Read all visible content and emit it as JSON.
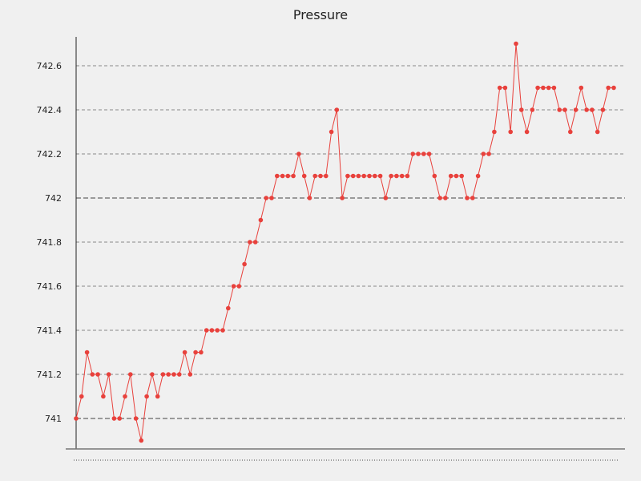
{
  "chart_data": {
    "type": "line",
    "title": "Pressure",
    "xlabel": "",
    "ylabel": "",
    "ylim": [
      740.9,
      742.75
    ],
    "yticks": [
      741,
      741.2,
      741.4,
      741.6,
      741.8,
      742,
      742.2,
      742.4,
      742.6
    ],
    "ytick_labels": [
      "741",
      "741.2",
      "741.4",
      "741.6",
      "741.8",
      "742",
      "742.2",
      "742.4",
      "742.6"
    ],
    "major_gridlines": [
      741,
      742
    ],
    "grid": true,
    "colors": {
      "series": "#e8413c",
      "background": "#f0f0f0",
      "axis": "#222222"
    },
    "series": [
      {
        "values": [
          741.0,
          741.1,
          741.3,
          741.2,
          741.2,
          741.1,
          741.2,
          741.0,
          741.0,
          741.1,
          741.2,
          741.0,
          740.9,
          741.1,
          741.2,
          741.1,
          741.2,
          741.2,
          741.2,
          741.2,
          741.3,
          741.2,
          741.3,
          741.3,
          741.4,
          741.4,
          741.4,
          741.4,
          741.5,
          741.6,
          741.6,
          741.7,
          741.8,
          741.8,
          741.9,
          742.0,
          742.0,
          742.1,
          742.1,
          742.1,
          742.1,
          742.2,
          742.1,
          742.0,
          742.1,
          742.1,
          742.1,
          742.3,
          742.4,
          742.0,
          742.1,
          742.1,
          742.1,
          742.1,
          742.1,
          742.1,
          742.1,
          742.0,
          742.1,
          742.1,
          742.1,
          742.1,
          742.2,
          742.2,
          742.2,
          742.2,
          742.1,
          742.0,
          742.0,
          742.1,
          742.1,
          742.1,
          742.0,
          742.0,
          742.1,
          742.2,
          742.2,
          742.3,
          742.5,
          742.5,
          742.3,
          742.7,
          742.4,
          742.3,
          742.4,
          742.5,
          742.5,
          742.5,
          742.5,
          742.4,
          742.4,
          742.3,
          742.4,
          742.5,
          742.4,
          742.4,
          742.3,
          742.4,
          742.5,
          742.5
        ]
      }
    ]
  }
}
